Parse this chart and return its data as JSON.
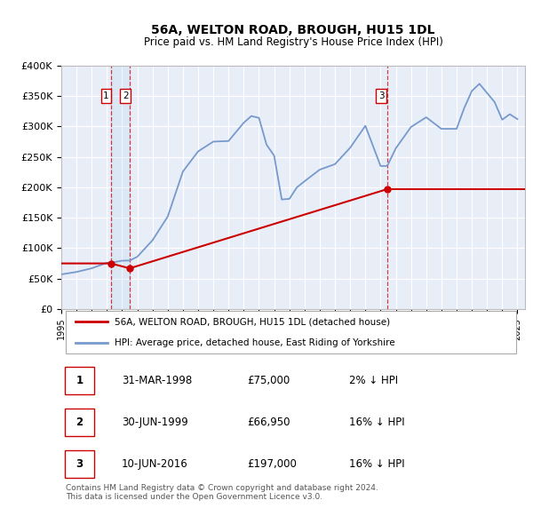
{
  "title": "56A, WELTON ROAD, BROUGH, HU15 1DL",
  "subtitle": "Price paid vs. HM Land Registry's House Price Index (HPI)",
  "ylim": [
    0,
    400000
  ],
  "xlim_start": 1995.0,
  "xlim_end": 2025.5,
  "plot_bg_color": "#e8eef8",
  "grid_color": "#ffffff",
  "sale_color": "#cc0000",
  "hpi_color": "#7799cc",
  "vline_x": [
    1998.25,
    1999.5,
    2016.44
  ],
  "sale_years": [
    1998.25,
    1999.5,
    2016.44
  ],
  "sale_prices": [
    75000,
    66950,
    197000
  ],
  "legend_line1": "56A, WELTON ROAD, BROUGH, HU15 1DL (detached house)",
  "legend_line2": "HPI: Average price, detached house, East Riding of Yorkshire",
  "table_rows": [
    {
      "num": "1",
      "date": "31-MAR-1998",
      "price": "£75,000",
      "hpi": "2% ↓ HPI"
    },
    {
      "num": "2",
      "date": "30-JUN-1999",
      "price": "£66,950",
      "hpi": "16% ↓ HPI"
    },
    {
      "num": "3",
      "date": "10-JUN-2016",
      "price": "£197,000",
      "hpi": "16% ↓ HPI"
    }
  ],
  "footnote": "Contains HM Land Registry data © Crown copyright and database right 2024.\nThis data is licensed under the Open Government Licence v3.0.",
  "x_tick_years": [
    1995,
    1996,
    1997,
    1998,
    1999,
    2000,
    2001,
    2002,
    2003,
    2004,
    2005,
    2006,
    2007,
    2008,
    2009,
    2010,
    2011,
    2012,
    2013,
    2014,
    2015,
    2016,
    2017,
    2018,
    2019,
    2020,
    2021,
    2022,
    2023,
    2024,
    2025
  ],
  "ytick_vals": [
    0,
    50000,
    100000,
    150000,
    200000,
    250000,
    300000,
    350000,
    400000
  ],
  "ytick_labels": [
    "£0",
    "£50K",
    "£100K",
    "£150K",
    "£200K",
    "£250K",
    "£300K",
    "£350K",
    "£400K"
  ]
}
